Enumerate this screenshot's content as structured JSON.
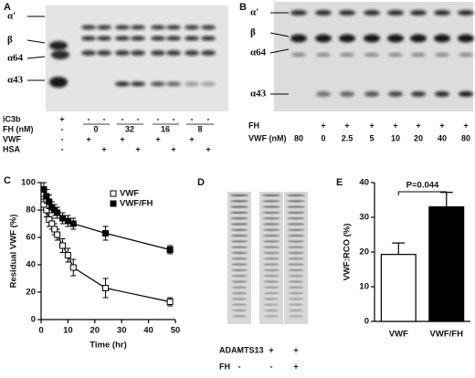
{
  "panel_a": {
    "label": "A",
    "bands": [
      "α'",
      "β",
      "α64",
      "α43"
    ],
    "rows": [
      {
        "name": "iC3b",
        "cells": [
          "+",
          "-",
          "-",
          "-",
          "-",
          "-",
          "-",
          "-",
          "-"
        ]
      },
      {
        "name": "FH (nM)",
        "cells": [
          "-",
          "0",
          "32",
          "16",
          "8"
        ]
      },
      {
        "name": "VWF",
        "cells": [
          "-",
          "+",
          null,
          "+",
          null,
          "+",
          null,
          "+",
          null
        ]
      },
      {
        "name": "HSA",
        "cells": [
          "-",
          null,
          "+",
          null,
          "+",
          null,
          "+",
          null,
          "+"
        ]
      }
    ]
  },
  "panel_b": {
    "label": "B",
    "bands": [
      "α'",
      "β",
      "α64",
      "α43"
    ],
    "rows": [
      {
        "name": "FH",
        "cells": [
          null,
          "+",
          "+",
          "+",
          "+",
          "+",
          "+",
          "+"
        ]
      },
      {
        "name": "VWF (nM)",
        "cells": [
          80,
          0,
          2.5,
          5,
          10,
          20,
          40,
          80
        ]
      }
    ]
  },
  "panel_d": {
    "label": "D",
    "rows": [
      {
        "name": "ADAMTS13",
        "cells": [
          "-",
          "+",
          "+"
        ]
      },
      {
        "name": "FH",
        "cells": [
          "-",
          "-",
          "+"
        ]
      }
    ]
  },
  "chart_data": [
    {
      "label": "C",
      "type": "line",
      "xlabel": "Time (hr)",
      "ylabel": "Residual VWF (%)",
      "x": [
        1,
        2,
        3,
        4,
        5,
        6,
        8,
        10,
        12,
        24,
        48
      ],
      "series": [
        {
          "name": "VWF",
          "color": "#000000",
          "marker": "open-square",
          "values": [
            84,
            80,
            73,
            70,
            66,
            62,
            54,
            47,
            38,
            23,
            13
          ],
          "error": [
            4,
            5,
            5,
            4,
            4,
            4,
            5,
            5,
            6,
            7,
            3
          ]
        },
        {
          "name": "VWF/FH",
          "color": "#000000",
          "marker": "filled-square",
          "values": [
            95,
            90,
            86,
            82,
            80,
            78,
            74,
            72,
            70,
            63,
            51
          ],
          "error": [
            5,
            5,
            5,
            4,
            4,
            4,
            4,
            4,
            4,
            5,
            3
          ]
        }
      ],
      "xlim": [
        0,
        50
      ],
      "xticks": [
        0,
        10,
        20,
        30,
        40,
        50
      ],
      "ylim": [
        0,
        100
      ],
      "yticks": [
        0,
        20,
        40,
        60,
        80,
        100
      ],
      "legend": "upper right"
    },
    {
      "label": "E",
      "type": "bar",
      "ylabel": "VWF:RCO (%)",
      "categories": [
        "VWF",
        "VWF/FH"
      ],
      "values": [
        19.3,
        33
      ],
      "error": [
        3.3,
        4.2
      ],
      "colors": [
        "#ffffff",
        "#000000"
      ],
      "ylim": [
        0,
        40
      ],
      "yticks": [
        0,
        10,
        20,
        30,
        40
      ],
      "annotation": "P=0.044"
    }
  ]
}
